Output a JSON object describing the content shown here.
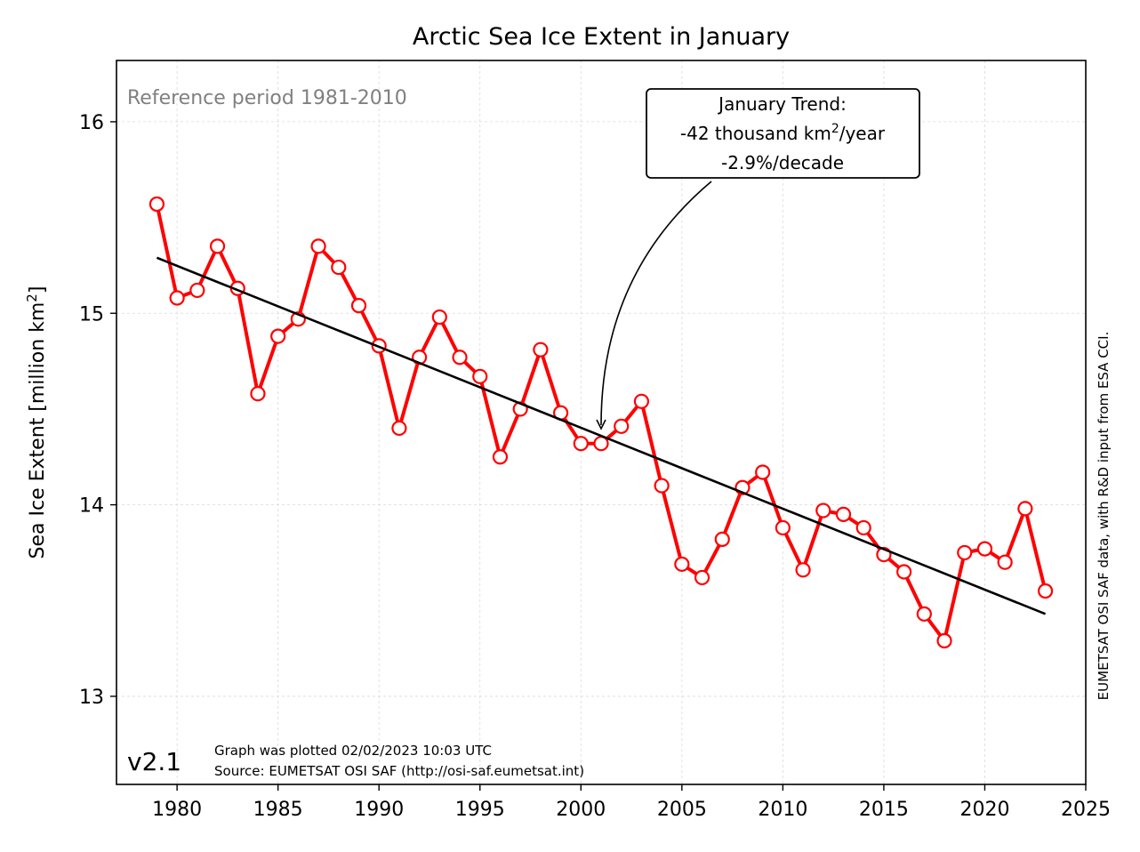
{
  "chart_data": {
    "type": "line",
    "title": "Arctic Sea Ice Extent in January",
    "ylabel_main": "Sea Ice Extent [million km",
    "ylabel_sup": "2",
    "ylabel_tail": "]",
    "reference_text": "Reference period 1981-2010",
    "version_text": "v2.1",
    "footer_line1": "Graph was plotted 02/02/2023 10:03 UTC",
    "footer_line2": "Source: EUMETSAT OSI SAF (http://osi-saf.eumetsat.int)",
    "side_credit": "EUMETSAT OSI SAF data, with R&D input from ESA CCI.",
    "annotation": {
      "line1": "January Trend:",
      "line2_pre": "-42 thousand km",
      "line2_sup": "2",
      "line2_post": "/year",
      "line3": "-2.9%/decade",
      "target_x": 2001,
      "target_y": 14.39
    },
    "xlim": [
      1977,
      2025
    ],
    "ylim": [
      12.54,
      16.32
    ],
    "xticks": [
      1980,
      1985,
      1990,
      1995,
      2000,
      2005,
      2010,
      2015,
      2020,
      2025
    ],
    "yticks": [
      13,
      14,
      15,
      16
    ],
    "grid": true,
    "series": [
      {
        "color": "#ff0000",
        "x": [
          1979,
          1980,
          1981,
          1982,
          1983,
          1984,
          1985,
          1986,
          1987,
          1988,
          1989,
          1990,
          1991,
          1992,
          1993,
          1994,
          1995,
          1996,
          1997,
          1998,
          1999,
          2000,
          2001,
          2002,
          2003,
          2004,
          2005,
          2006,
          2007,
          2008,
          2009,
          2010,
          2011,
          2012,
          2013,
          2014,
          2015,
          2016,
          2017,
          2018,
          2019,
          2020,
          2021,
          2022,
          2023
        ],
        "y": [
          15.57,
          15.08,
          15.12,
          15.35,
          15.13,
          14.58,
          14.88,
          14.97,
          15.35,
          15.24,
          15.04,
          14.83,
          14.4,
          14.77,
          14.98,
          14.77,
          14.67,
          14.25,
          14.5,
          14.81,
          14.48,
          14.32,
          14.32,
          14.41,
          14.54,
          14.1,
          13.69,
          13.62,
          13.82,
          14.09,
          14.17,
          13.88,
          13.66,
          13.97,
          13.95,
          13.88,
          13.74,
          13.65,
          13.43,
          13.29,
          13.75,
          13.77,
          13.7,
          13.98,
          13.55
        ]
      }
    ],
    "trend": {
      "color": "#000000",
      "x": [
        1979,
        2023
      ],
      "y": [
        15.29,
        13.43
      ]
    }
  }
}
